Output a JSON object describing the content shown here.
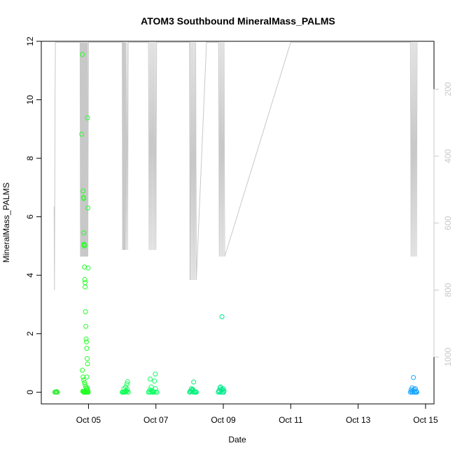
{
  "chart_data": {
    "type": "scatter",
    "title": "ATOM3 Southbound MineralMass_PALMS",
    "xlabel": "Date",
    "ylabel": "MineralMass_PALMS",
    "x_ticks": [
      "Oct 05",
      "Oct 07",
      "Oct 09",
      "Oct 11",
      "Oct 13",
      "Oct 15"
    ],
    "x_tick_days": [
      5,
      7,
      9,
      11,
      13,
      15
    ],
    "xlim_days": [
      3.6,
      15.25
    ],
    "y_ticks": [
      "0",
      "2",
      "4",
      "6",
      "8",
      "10",
      "12"
    ],
    "ylim": [
      -0.4,
      12
    ],
    "right_axis": {
      "ticks": [
        "200",
        "400",
        "600",
        "800",
        "1000"
      ],
      "tick_values": [
        200,
        400,
        600,
        800,
        1000
      ],
      "range": [
        57,
        1140
      ],
      "inverted": true,
      "color": "#c8c8c8",
      "description": "pressure (grey altitude profile)"
    },
    "colors": {
      "points_start": "#00ff00",
      "points_mid": "#00e68a",
      "points_end": "#0096ff",
      "profile_line": "#c8c8c8",
      "axis": "#000000"
    },
    "series": [
      {
        "color": "#33ee33",
        "x": [
          4.0,
          4.02,
          4.04,
          4.06,
          4.08
        ],
        "y": [
          0.0,
          0.01,
          0.0,
          0.02,
          0.0
        ]
      },
      {
        "color": "#22ff22",
        "x": [
          4.8,
          4.82,
          4.84,
          4.85,
          4.86,
          4.86,
          4.87,
          4.87,
          4.88,
          4.88,
          4.89,
          4.9,
          4.9,
          4.91,
          4.92,
          4.93,
          4.94,
          4.95,
          4.96,
          4.97,
          4.82,
          4.84,
          4.86,
          4.88,
          4.9,
          4.92,
          4.94,
          4.96,
          4.98,
          4.83,
          4.85,
          4.87,
          4.89,
          4.91,
          4.93,
          4.95,
          4.97,
          4.99,
          4.86,
          4.9,
          4.94
        ],
        "y": [
          8.82,
          11.55,
          6.88,
          6.66,
          6.62,
          5.45,
          5.06,
          5.03,
          5.0,
          4.28,
          3.85,
          3.6,
          3.75,
          2.75,
          2.25,
          1.82,
          1.72,
          1.5,
          1.15,
          0.97,
          0.75,
          0.52,
          0.42,
          0.33,
          0.25,
          0.18,
          0.12,
          0.08,
          0.05,
          0.03,
          0.02,
          0.0,
          0.01,
          0.0,
          0.02,
          0.0,
          0.01,
          0.0,
          0.0,
          0.0,
          0.0
        ]
      },
      {
        "color": "#22ff33",
        "x": [
          4.97,
          4.98,
          4.99,
          4.95,
          4.96
        ],
        "y": [
          9.38,
          6.3,
          4.25,
          0.52,
          0.15
        ]
      },
      {
        "color": "#11ff55",
        "x": [
          6.0,
          6.03,
          6.06,
          6.09,
          6.12,
          6.15,
          6.17,
          6.05,
          6.1,
          6.14,
          6.16,
          6.18,
          6.02,
          6.08,
          6.13
        ],
        "y": [
          0.0,
          0.01,
          0.0,
          0.02,
          0.05,
          0.1,
          0.0,
          0.12,
          0.18,
          0.28,
          0.36,
          0.0,
          0.0,
          0.01,
          0.03
        ]
      },
      {
        "color": "#11ff66",
        "x": [
          6.78,
          6.8,
          6.83,
          6.86,
          6.88,
          6.9,
          6.93,
          6.96,
          6.98,
          7.0,
          6.82,
          6.85,
          6.9,
          6.95,
          6.99,
          7.03
        ],
        "y": [
          0.0,
          0.02,
          0.45,
          0.18,
          0.05,
          0.0,
          0.01,
          0.38,
          0.62,
          0.0,
          0.08,
          0.0,
          0.03,
          0.0,
          0.12,
          0.0
        ]
      },
      {
        "color": "#00f07a",
        "x": [
          8.0,
          8.03,
          8.06,
          8.09,
          8.12,
          8.15,
          8.18,
          8.05,
          8.08,
          8.11,
          8.02,
          8.14,
          8.2
        ],
        "y": [
          0.0,
          0.02,
          0.05,
          0.1,
          0.35,
          0.0,
          0.01,
          0.12,
          0.08,
          0.0,
          0.03,
          0.02,
          0.0
        ]
      },
      {
        "color": "#00ea8c",
        "x": [
          8.85,
          8.87,
          8.9,
          8.92,
          8.94,
          8.96,
          8.98,
          9.0,
          9.02,
          8.88,
          8.93,
          8.97,
          9.01
        ],
        "y": [
          0.0,
          0.05,
          0.15,
          0.18,
          0.1,
          2.58,
          0.0,
          0.12,
          0.05,
          0.02,
          0.0,
          0.08,
          0.0
        ]
      },
      {
        "color": "#1aa6ff",
        "x": [
          14.55,
          14.58,
          14.6,
          14.62,
          14.64,
          14.66,
          14.68,
          14.7,
          14.72,
          14.74,
          14.57,
          14.61,
          14.65,
          14.69,
          14.73
        ],
        "y": [
          0.0,
          0.02,
          0.15,
          0.05,
          0.5,
          0.1,
          0.0,
          0.12,
          0.03,
          0.0,
          0.08,
          0.0,
          0.01,
          0.0,
          0.02
        ]
      }
    ],
    "profile": {
      "color": "#c8c8c8",
      "x": [
        3.98,
        3.99,
        4.0,
        4.01,
        4.02,
        4.03,
        4.75,
        4.76,
        4.77,
        4.78,
        4.79,
        4.8,
        4.81,
        4.82,
        4.83,
        4.84,
        4.85,
        4.86,
        4.87,
        4.88,
        4.89,
        4.9,
        4.91,
        4.92,
        4.93,
        4.94,
        4.95,
        4.96,
        4.97,
        4.98,
        4.99,
        5.0,
        6.0,
        6.01,
        6.02,
        6.03,
        6.04,
        6.05,
        6.06,
        6.07,
        6.08,
        6.09,
        6.1,
        6.12,
        6.14,
        6.16,
        6.18,
        6.2,
        6.4,
        6.6,
        6.78,
        6.8,
        6.82,
        6.84,
        6.86,
        6.88,
        6.9,
        6.92,
        6.94,
        6.96,
        6.98,
        7.0,
        7.02,
        7.04,
        7.2,
        7.6,
        8.0,
        8.01,
        8.02,
        8.04,
        8.06,
        8.08,
        8.1,
        8.12,
        8.14,
        8.16,
        8.18,
        8.2,
        8.5,
        8.85,
        8.86,
        8.88,
        8.9,
        8.92,
        8.94,
        8.96,
        8.98,
        9.0,
        9.02,
        9.04,
        11.0,
        13.0,
        14.5,
        14.55,
        14.57,
        14.59,
        14.61,
        14.63,
        14.65,
        14.67,
        14.69,
        14.71,
        14.73,
        14.75
      ],
      "y": [
        550,
        800,
        500,
        200,
        60,
        60,
        60,
        700,
        60,
        700,
        60,
        700,
        60,
        700,
        60,
        700,
        60,
        700,
        60,
        700,
        60,
        700,
        60,
        700,
        60,
        700,
        60,
        700,
        60,
        700,
        400,
        60,
        60,
        680,
        60,
        680,
        60,
        680,
        60,
        680,
        60,
        680,
        60,
        680,
        60,
        680,
        60,
        60,
        60,
        60,
        60,
        680,
        60,
        680,
        60,
        680,
        60,
        680,
        60,
        680,
        60,
        680,
        60,
        60,
        60,
        60,
        60,
        770,
        60,
        770,
        60,
        770,
        60,
        770,
        60,
        770,
        60,
        770,
        60,
        60,
        60,
        700,
        60,
        700,
        60,
        700,
        60,
        700,
        60,
        700,
        60,
        60,
        60,
        60,
        700,
        60,
        700,
        60,
        700,
        60,
        700,
        60,
        700,
        60
      ]
    }
  }
}
